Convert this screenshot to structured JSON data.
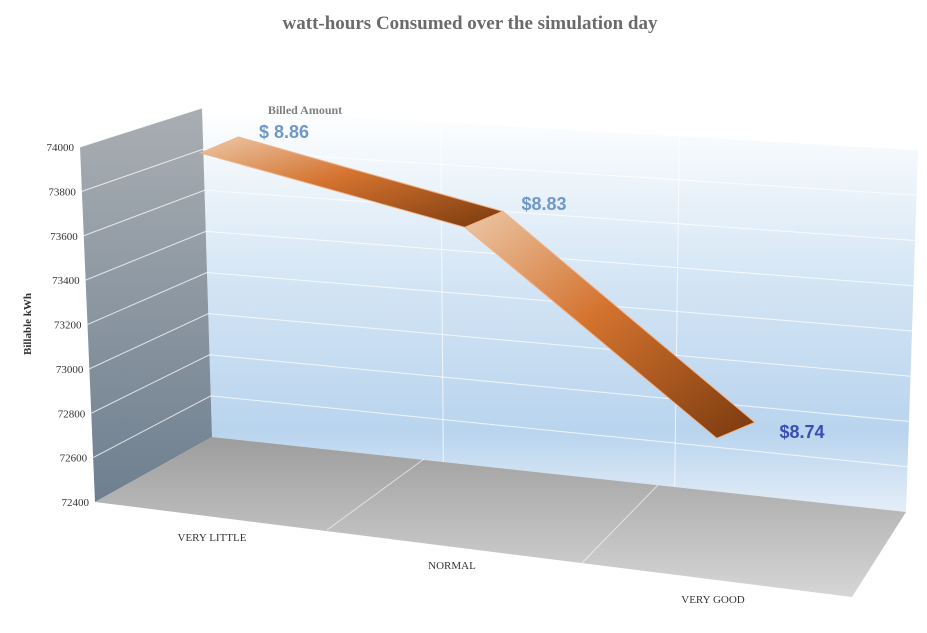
{
  "chart_data": {
    "type": "line",
    "title": "watt-hours Consumed over the simulation day",
    "ylabel": "Billable kWh",
    "xlabel": "",
    "categories": [
      "VERY LITTLE",
      "NORMAL",
      "VERY GOOD"
    ],
    "series": [
      {
        "name": "",
        "values": [
          73870,
          73600,
          72730
        ]
      }
    ],
    "ylim": [
      72400,
      74000
    ],
    "yticks": [
      "74000",
      "73800",
      "73600",
      "73400",
      "73200",
      "73000",
      "72800",
      "72600",
      "72400"
    ],
    "annotations": {
      "header": "Billed Amount",
      "labels": [
        "$ 8.86",
        "$8.83",
        "$8.74"
      ]
    },
    "grid": true,
    "legend": "none",
    "colors": {
      "ribbon_light": "#e8c3a4",
      "ribbon_mid": "#d4732f",
      "ribbon_dark": "#7a3a0e",
      "label_light": "#6f98c8",
      "label_dark": "#3b4db5",
      "title": "#6b6b6b"
    }
  }
}
